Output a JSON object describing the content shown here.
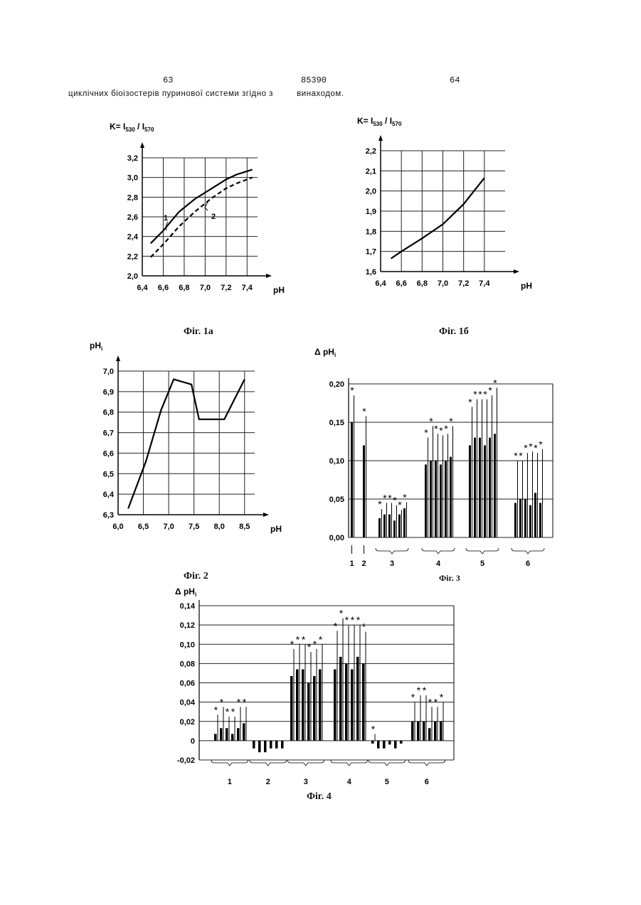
{
  "header": {
    "left_page": "63",
    "center_number": "85390",
    "right_page": "64",
    "subtitle": "циклічних біоізостерів пуринової системи згідно з         винаходом."
  },
  "figures": {
    "fig1a": {
      "caption": "Фіг. 1а",
      "ylabel": "K= I530 / I570",
      "xlabel": "pH",
      "curve1_label": "1",
      "curve2_label": "2"
    },
    "fig1b": {
      "caption": "Фіг. 1б",
      "ylabel": "K= I530 / I570",
      "xlabel": "pH"
    },
    "fig2": {
      "caption": "Фіг. 2",
      "ylabel": "pHi",
      "xlabel": "pH"
    },
    "fig3": {
      "caption": "Фіг. 3",
      "ylabel": "Δ pHi"
    },
    "fig4": {
      "caption": "Фіг. 4",
      "ylabel": "Δ pHi"
    }
  },
  "chart_data": [
    {
      "id": "fig1a",
      "type": "line",
      "xlabel": "pH",
      "ylabel": "K= I530 / I570",
      "xlim": [
        6.4,
        7.5
      ],
      "ylim": [
        2.0,
        3.2
      ],
      "xticks": [
        "6,4",
        "6,6",
        "6,8",
        "7,0",
        "7,2",
        "7,4"
      ],
      "yticks": [
        "2,0",
        "2,2",
        "2,4",
        "2,6",
        "2,8",
        "3,0",
        "3,2"
      ],
      "series": [
        {
          "name": "1",
          "style": "solid",
          "x": [
            6.48,
            6.6,
            6.75,
            6.9,
            7.05,
            7.2,
            7.3,
            7.45
          ],
          "y": [
            2.33,
            2.46,
            2.65,
            2.78,
            2.88,
            2.98,
            3.03,
            3.08
          ]
        },
        {
          "name": "2",
          "style": "dashed",
          "x": [
            6.48,
            6.6,
            6.75,
            6.9,
            7.05,
            7.2,
            7.3,
            7.45
          ],
          "y": [
            2.19,
            2.32,
            2.5,
            2.65,
            2.78,
            2.89,
            2.94,
            3.0
          ]
        }
      ]
    },
    {
      "id": "fig1b",
      "type": "line",
      "xlabel": "pH",
      "ylabel": "K= I530 / I570",
      "xlim": [
        6.4,
        7.6
      ],
      "ylim": [
        1.6,
        2.2
      ],
      "xticks": [
        "6,4",
        "6,6",
        "6,8",
        "7,0",
        "7,2",
        "7,4"
      ],
      "yticks": [
        "1,6",
        "1,7",
        "1,8",
        "1,9",
        "2,0",
        "2,1",
        "2,2"
      ],
      "series": [
        {
          "x": [
            6.5,
            6.6,
            6.8,
            7.0,
            7.2,
            7.4
          ],
          "y": [
            1.665,
            1.7,
            1.765,
            1.835,
            1.935,
            2.065
          ]
        }
      ]
    },
    {
      "id": "fig2",
      "type": "line",
      "xlabel": "pH",
      "ylabel": "pHi",
      "xlim": [
        6.0,
        8.7
      ],
      "ylim": [
        6.3,
        7.0
      ],
      "xticks": [
        "6,0",
        "6,5",
        "7,0",
        "7,5",
        "8,0",
        "8,5"
      ],
      "yticks": [
        "6,3",
        "6,4",
        "6,5",
        "6,6",
        "6,7",
        "6,8",
        "6,9",
        "7,0"
      ],
      "series": [
        {
          "x": [
            6.2,
            6.55,
            6.85,
            7.1,
            7.45,
            7.6,
            8.1,
            8.5
          ],
          "y": [
            6.33,
            6.56,
            6.81,
            6.96,
            6.935,
            6.765,
            6.765,
            6.96
          ]
        }
      ]
    },
    {
      "id": "fig3",
      "type": "bar",
      "ylabel": "Δ pHi",
      "ylim": [
        0.0,
        0.2
      ],
      "yticks": [
        "0,00",
        "0,05",
        "0,10",
        "0,15",
        "0,20"
      ],
      "groups": [
        "1",
        "2",
        "3",
        "4",
        "5",
        "6"
      ],
      "bars": [
        {
          "group": "1",
          "values": [
            0.15
          ],
          "errors": [
            0.035
          ]
        },
        {
          "group": "2",
          "values": [
            0.12
          ],
          "errors": [
            0.038
          ]
        },
        {
          "group": "3",
          "values": [
            0.025,
            0.03,
            0.03,
            0.022,
            0.03,
            0.038
          ],
          "errors": [
            0.012,
            0.015,
            0.015,
            0.02,
            0.006,
            0.008
          ]
        },
        {
          "group": "4",
          "values": [
            0.095,
            0.1,
            0.1,
            0.095,
            0.1,
            0.105
          ],
          "errors": [
            0.035,
            0.045,
            0.035,
            0.038,
            0.035,
            0.04
          ]
        },
        {
          "group": "5",
          "values": [
            0.12,
            0.13,
            0.13,
            0.12,
            0.13,
            0.135
          ],
          "errors": [
            0.05,
            0.05,
            0.05,
            0.06,
            0.055,
            0.06
          ]
        },
        {
          "group": "6",
          "values": [
            0.045,
            0.05,
            0.05,
            0.042,
            0.058,
            0.045
          ],
          "errors": [
            0.055,
            0.05,
            0.06,
            0.07,
            0.052,
            0.07
          ]
        }
      ],
      "marker": "*"
    },
    {
      "id": "fig4",
      "type": "bar",
      "ylabel": "Δ pHi",
      "ylim": [
        -0.02,
        0.14
      ],
      "yticks": [
        "-0,02",
        "0",
        "0,02",
        "0,04",
        "0,06",
        "0,08",
        "0,10",
        "0,12",
        "0,14"
      ],
      "groups": [
        "1",
        "2",
        "3",
        "4",
        "5",
        "6"
      ],
      "bars": [
        {
          "group": "1",
          "values": [
            0.007,
            0.013,
            0.013,
            0.007,
            0.013,
            0.018
          ],
          "errors": [
            0.02,
            0.022,
            0.012,
            0.018,
            0.022,
            0.017
          ]
        },
        {
          "group": "2",
          "values": [
            -0.008,
            -0.012,
            -0.012,
            -0.008,
            -0.008,
            -0.008
          ],
          "errors": [
            0,
            0,
            0,
            0,
            0,
            0
          ]
        },
        {
          "group": "3",
          "values": [
            0.067,
            0.074,
            0.074,
            0.06,
            0.067,
            0.074
          ],
          "errors": [
            0.028,
            0.026,
            0.026,
            0.032,
            0.028,
            0.026
          ]
        },
        {
          "group": "4",
          "values": [
            0.074,
            0.087,
            0.08,
            0.074,
            0.087,
            0.08
          ],
          "errors": [
            0.04,
            0.04,
            0.04,
            0.046,
            0.033,
            0.033
          ]
        },
        {
          "group": "5",
          "values": [
            -0.003,
            -0.008,
            -0.008,
            -0.004,
            -0.008,
            -0.003
          ],
          "errors": [
            0.01,
            0.0,
            0.0,
            0.0,
            0.0,
            0.0
          ]
        },
        {
          "group": "6",
          "values": [
            0.02,
            0.02,
            0.02,
            0.013,
            0.02,
            0.02
          ],
          "errors": [
            0.02,
            0.027,
            0.027,
            0.022,
            0.015,
            0.02
          ]
        }
      ],
      "marker": "*"
    }
  ]
}
